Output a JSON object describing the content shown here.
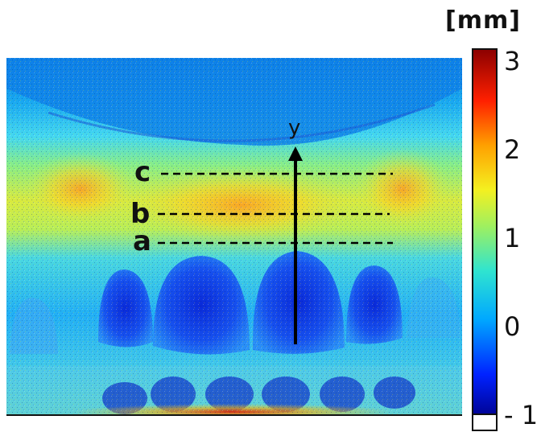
{
  "image": {
    "description_kind": "false-color displacement map of dentition",
    "colormap": [
      "#00008b",
      "#0033ff",
      "#00aaff",
      "#33e0c0",
      "#b8f040",
      "#ffd000",
      "#ff8000",
      "#e00000",
      "#8b0000"
    ]
  },
  "annotations": {
    "lines": [
      {
        "label": "c"
      },
      {
        "label": "b"
      },
      {
        "label": "a"
      }
    ],
    "axis_label": "y"
  },
  "colorbar": {
    "unit": "[mm]",
    "ticks": [
      "3",
      "2",
      "1",
      "0",
      "- 1"
    ],
    "range": [
      -1,
      3
    ]
  }
}
